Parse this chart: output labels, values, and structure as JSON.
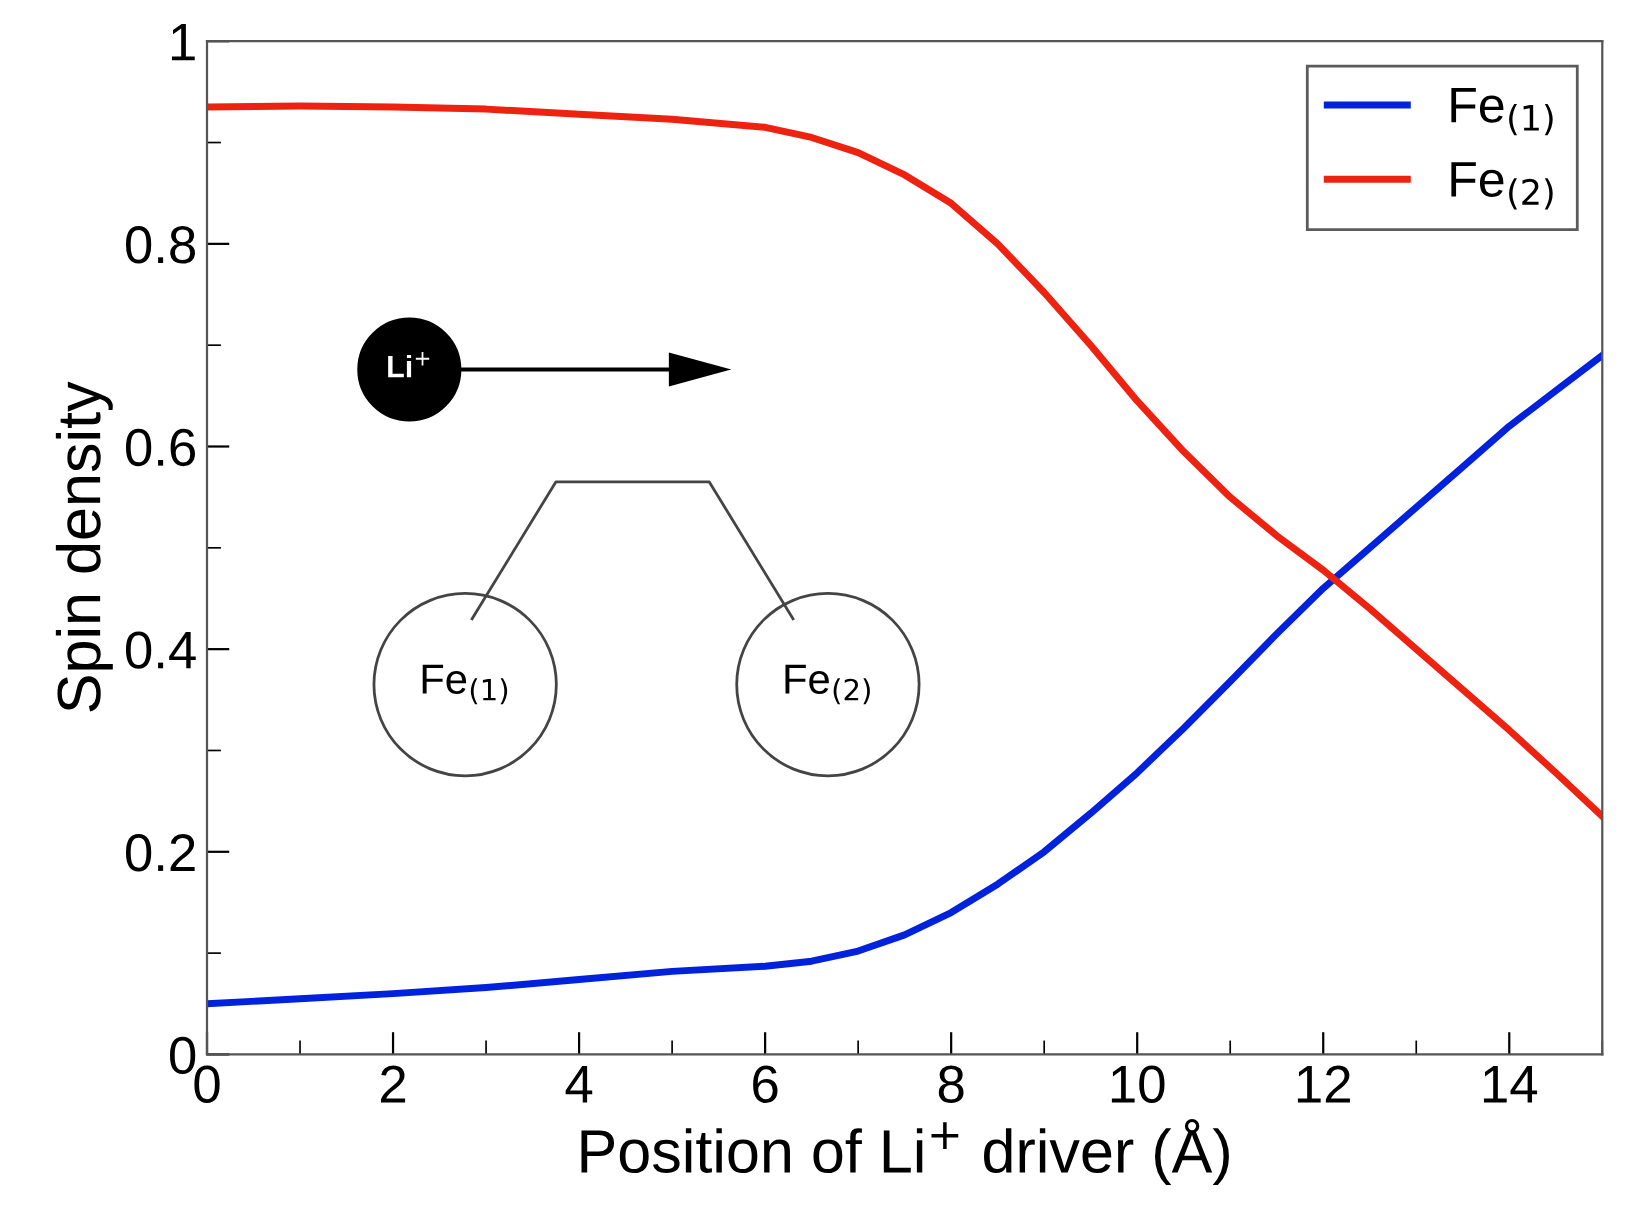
{
  "chart_data": {
    "type": "line",
    "xlabel": "Position of Li$^{+}$ driver (Å)",
    "ylabel": "Spin density",
    "x": [
      0,
      1,
      2,
      3,
      4,
      5,
      6,
      6.5,
      7,
      7.5,
      8,
      8.5,
      9,
      9.5,
      10,
      10.5,
      11,
      11.5,
      12,
      12.5,
      13,
      13.5,
      14,
      14.5,
      15
    ],
    "series": [
      {
        "name": "Fe$_{(1)}$",
        "color": "#0022dd",
        "values": [
          0.05,
          0.055,
          0.06,
          0.066,
          0.074,
          0.082,
          0.087,
          0.092,
          0.102,
          0.118,
          0.14,
          0.168,
          0.2,
          0.238,
          0.278,
          0.322,
          0.368,
          0.415,
          0.46,
          0.5,
          0.54,
          0.58,
          0.62,
          0.655,
          0.69
        ]
      },
      {
        "name": "Fe$_{(2)}$",
        "color": "#ee2211",
        "values": [
          0.935,
          0.936,
          0.935,
          0.933,
          0.928,
          0.923,
          0.915,
          0.905,
          0.89,
          0.868,
          0.84,
          0.8,
          0.752,
          0.7,
          0.645,
          0.595,
          0.55,
          0.512,
          0.478,
          0.44,
          0.4,
          0.36,
          0.32,
          0.278,
          0.235
        ]
      }
    ],
    "xlim": [
      0,
      15
    ],
    "ylim": [
      0,
      1
    ],
    "xticks": [
      0,
      2,
      4,
      6,
      8,
      10,
      12,
      14
    ],
    "yticks": [
      0,
      0.2,
      0.4,
      0.6,
      0.8,
      1
    ],
    "annotations": [
      "Li$^{+}$",
      "Fe$_{(1)}$",
      "Fe$_{(2)}$"
    ],
    "legend": "top right",
    "grid": false,
    "marker": "none",
    "line_style": "solid"
  }
}
